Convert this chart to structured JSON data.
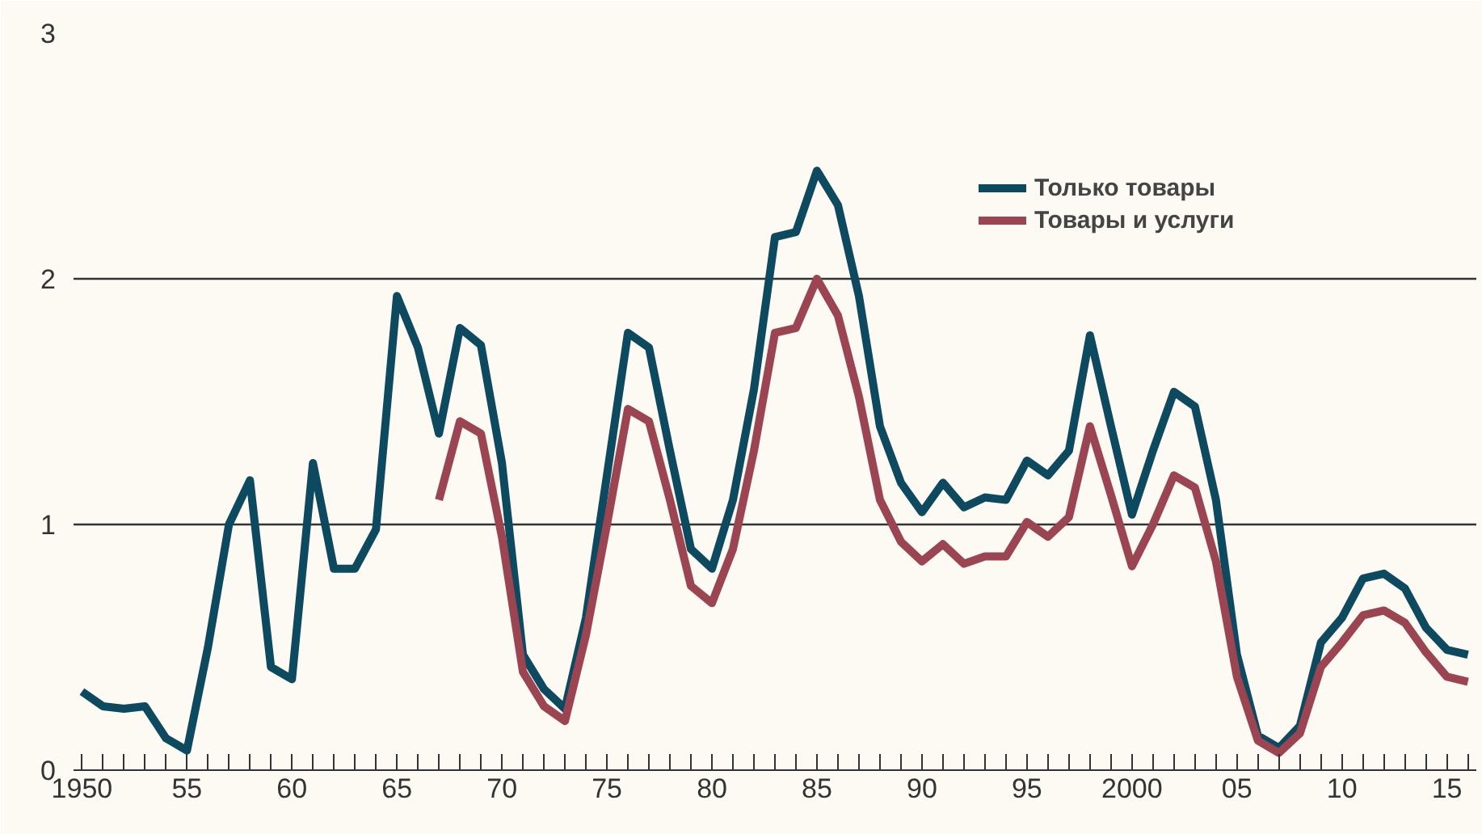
{
  "chart_data": {
    "type": "line",
    "x": [
      1950,
      1951,
      1952,
      1953,
      1954,
      1955,
      1956,
      1957,
      1958,
      1959,
      1960,
      1961,
      1962,
      1963,
      1964,
      1965,
      1966,
      1967,
      1968,
      1969,
      1970,
      1971,
      1972,
      1973,
      1974,
      1975,
      1976,
      1977,
      1978,
      1979,
      1980,
      1981,
      1982,
      1983,
      1984,
      1985,
      1986,
      1987,
      1988,
      1989,
      1990,
      1991,
      1992,
      1993,
      1994,
      1995,
      1996,
      1997,
      1998,
      1999,
      2000,
      2001,
      2002,
      2003,
      2004,
      2005,
      2006,
      2007,
      2008,
      2009,
      2010,
      2011,
      2012,
      2013,
      2014,
      2015,
      2016
    ],
    "series": [
      {
        "name": "Только товары",
        "color": "#0d4a5f",
        "values": [
          0.32,
          0.26,
          0.25,
          0.26,
          0.13,
          0.08,
          0.5,
          1.0,
          1.18,
          0.42,
          0.37,
          1.25,
          0.82,
          0.82,
          0.98,
          1.93,
          1.72,
          1.37,
          1.8,
          1.73,
          1.25,
          0.47,
          0.33,
          0.25,
          0.62,
          1.2,
          1.78,
          1.72,
          1.3,
          0.9,
          0.82,
          1.1,
          1.55,
          2.17,
          2.19,
          2.44,
          2.3,
          1.93,
          1.4,
          1.17,
          1.05,
          1.17,
          1.07,
          1.11,
          1.1,
          1.26,
          1.2,
          1.3,
          1.77,
          1.4,
          1.04,
          1.3,
          1.54,
          1.48,
          1.1,
          0.47,
          0.14,
          0.09,
          0.18,
          0.52,
          0.62,
          0.78,
          0.8,
          0.74,
          0.58,
          0.49,
          0.47
        ]
      },
      {
        "name": "Товары и услуги",
        "color": "#9b4452",
        "values": [
          null,
          null,
          null,
          null,
          null,
          null,
          null,
          null,
          null,
          null,
          null,
          null,
          null,
          null,
          null,
          null,
          null,
          1.1,
          1.42,
          1.37,
          0.95,
          0.4,
          0.26,
          0.2,
          0.55,
          1.0,
          1.47,
          1.42,
          1.1,
          0.75,
          0.68,
          0.9,
          1.3,
          1.78,
          1.8,
          2.0,
          1.85,
          1.52,
          1.1,
          0.93,
          0.85,
          0.92,
          0.84,
          0.87,
          0.87,
          1.01,
          0.95,
          1.03,
          1.4,
          1.12,
          0.83,
          1.0,
          1.2,
          1.15,
          0.85,
          0.38,
          0.12,
          0.07,
          0.15,
          0.42,
          0.52,
          0.63,
          0.65,
          0.6,
          0.48,
          0.38,
          0.36
        ]
      }
    ],
    "xlim": [
      1949.6,
      2016.4
    ],
    "ylim": [
      0,
      3
    ],
    "yticks": [
      0,
      1,
      2,
      3
    ],
    "xticks": [
      {
        "value": 1950,
        "label": "1950"
      },
      {
        "value": 1951,
        "label": null
      },
      {
        "value": 1952,
        "label": null
      },
      {
        "value": 1953,
        "label": null
      },
      {
        "value": 1954,
        "label": null
      },
      {
        "value": 1955,
        "label": "55"
      },
      {
        "value": 1956,
        "label": null
      },
      {
        "value": 1957,
        "label": null
      },
      {
        "value": 1958,
        "label": null
      },
      {
        "value": 1959,
        "label": null
      },
      {
        "value": 1960,
        "label": "60"
      },
      {
        "value": 1961,
        "label": null
      },
      {
        "value": 1962,
        "label": null
      },
      {
        "value": 1963,
        "label": null
      },
      {
        "value": 1964,
        "label": null
      },
      {
        "value": 1965,
        "label": "65"
      },
      {
        "value": 1966,
        "label": null
      },
      {
        "value": 1967,
        "label": null
      },
      {
        "value": 1968,
        "label": null
      },
      {
        "value": 1969,
        "label": null
      },
      {
        "value": 1970,
        "label": "70"
      },
      {
        "value": 1971,
        "label": null
      },
      {
        "value": 1972,
        "label": null
      },
      {
        "value": 1973,
        "label": null
      },
      {
        "value": 1974,
        "label": null
      },
      {
        "value": 1975,
        "label": "75"
      },
      {
        "value": 1976,
        "label": null
      },
      {
        "value": 1977,
        "label": null
      },
      {
        "value": 1978,
        "label": null
      },
      {
        "value": 1979,
        "label": null
      },
      {
        "value": 1980,
        "label": "80"
      },
      {
        "value": 1981,
        "label": null
      },
      {
        "value": 1982,
        "label": null
      },
      {
        "value": 1983,
        "label": null
      },
      {
        "value": 1984,
        "label": null
      },
      {
        "value": 1985,
        "label": "85"
      },
      {
        "value": 1986,
        "label": null
      },
      {
        "value": 1987,
        "label": null
      },
      {
        "value": 1988,
        "label": null
      },
      {
        "value": 1989,
        "label": null
      },
      {
        "value": 1990,
        "label": "90"
      },
      {
        "value": 1991,
        "label": null
      },
      {
        "value": 1992,
        "label": null
      },
      {
        "value": 1993,
        "label": null
      },
      {
        "value": 1994,
        "label": null
      },
      {
        "value": 1995,
        "label": "95"
      },
      {
        "value": 1996,
        "label": null
      },
      {
        "value": 1997,
        "label": null
      },
      {
        "value": 1998,
        "label": null
      },
      {
        "value": 1999,
        "label": null
      },
      {
        "value": 2000,
        "label": "2000"
      },
      {
        "value": 2001,
        "label": null
      },
      {
        "value": 2002,
        "label": null
      },
      {
        "value": 2003,
        "label": null
      },
      {
        "value": 2004,
        "label": null
      },
      {
        "value": 2005,
        "label": "05"
      },
      {
        "value": 2006,
        "label": null
      },
      {
        "value": 2007,
        "label": null
      },
      {
        "value": 2008,
        "label": null
      },
      {
        "value": 2009,
        "label": null
      },
      {
        "value": 2010,
        "label": "10"
      },
      {
        "value": 2011,
        "label": null
      },
      {
        "value": 2012,
        "label": null
      },
      {
        "value": 2013,
        "label": null
      },
      {
        "value": 2014,
        "label": null
      },
      {
        "value": 2015,
        "label": "15"
      },
      {
        "value": 2016,
        "label": null
      }
    ],
    "grid": "y",
    "legend": "top right",
    "line_style": "solid"
  }
}
